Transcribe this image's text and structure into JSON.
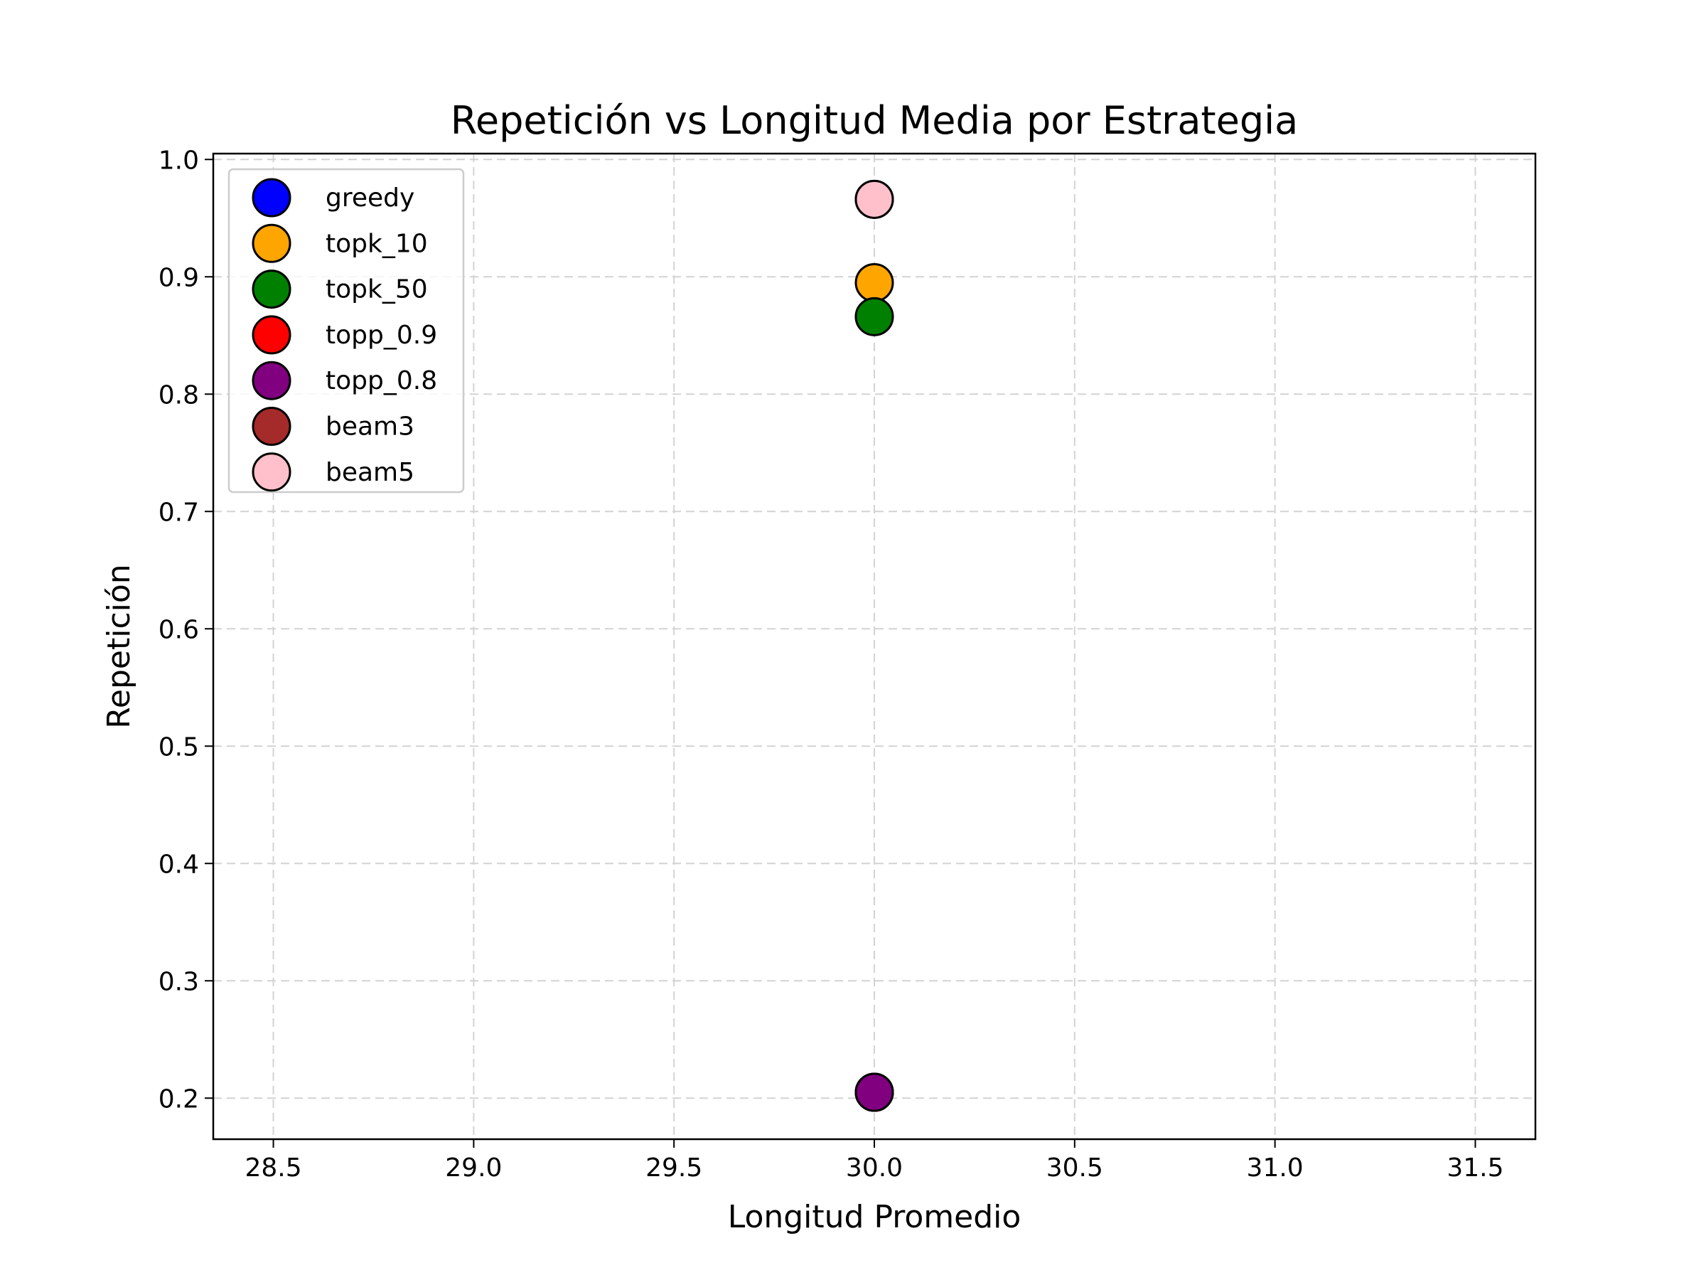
{
  "chart_data": {
    "type": "scatter",
    "title": "Repetición vs Longitud Media por Estrategia",
    "xlabel": "Longitud Promedio",
    "ylabel": "Repetición",
    "xlim": [
      28.35,
      31.65
    ],
    "ylim": [
      0.165,
      1.005
    ],
    "xticks": [
      "28.5",
      "29.0",
      "29.5",
      "30.0",
      "30.5",
      "31.0",
      "31.5"
    ],
    "yticks": [
      "0.2",
      "0.3",
      "0.4",
      "0.5",
      "0.6",
      "0.7",
      "0.8",
      "0.9",
      "1.0"
    ],
    "grid": true,
    "legend_position": "top-left",
    "series": [
      {
        "name": "greedy",
        "color": "#0000ff",
        "x": [
          30.0
        ],
        "y": [
          0.205
        ]
      },
      {
        "name": "topk_10",
        "color": "#ffa500",
        "x": [
          30.0
        ],
        "y": [
          0.895
        ]
      },
      {
        "name": "topk_50",
        "color": "#008000",
        "x": [
          30.0
        ],
        "y": [
          0.866
        ]
      },
      {
        "name": "topp_0.9",
        "color": "#ff0000",
        "x": [
          30.0
        ],
        "y": [
          0.205
        ]
      },
      {
        "name": "topp_0.8",
        "color": "#800080",
        "x": [
          30.0
        ],
        "y": [
          0.205
        ]
      },
      {
        "name": "beam3",
        "color": "#a52a2a",
        "x": [
          30.0
        ],
        "y": [
          0.966
        ]
      },
      {
        "name": "beam5",
        "color": "#ffc0cb",
        "x": [
          30.0
        ],
        "y": [
          0.966
        ]
      }
    ]
  }
}
